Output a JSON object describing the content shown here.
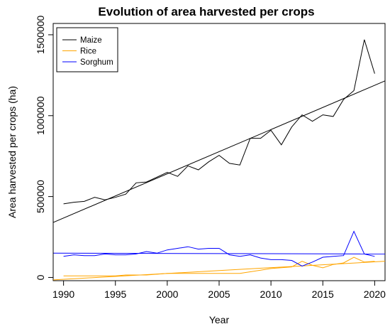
{
  "chart_data": {
    "type": "line",
    "title": "Evolution of area harvested per crops",
    "xlabel": "Year",
    "ylabel": "Area harvested per crops (ha)",
    "xlim": [
      1989,
      2021
    ],
    "ylim": [
      -20000,
      1570000
    ],
    "x_ticks": [
      1990,
      1995,
      2000,
      2005,
      2010,
      2015,
      2020
    ],
    "y_ticks": [
      0,
      500000,
      1000000,
      1500000
    ],
    "grid": false,
    "legend_position": "top-left",
    "x": [
      1990,
      1991,
      1992,
      1993,
      1994,
      1995,
      1996,
      1997,
      1998,
      1999,
      2000,
      2001,
      2002,
      2003,
      2004,
      2005,
      2006,
      2007,
      2008,
      2009,
      2010,
      2011,
      2012,
      2013,
      2014,
      2015,
      2016,
      2017,
      2018,
      2019,
      2020
    ],
    "series": [
      {
        "name": "Maize",
        "color": "#000000",
        "values": [
          455000,
          465000,
          470000,
          495000,
          480000,
          495000,
          515000,
          585000,
          590000,
          620000,
          650000,
          625000,
          690000,
          665000,
          715000,
          755000,
          705000,
          695000,
          860000,
          860000,
          910000,
          820000,
          930000,
          1005000,
          965000,
          1005000,
          995000,
          1100000,
          1155000,
          1470000,
          1260000
        ],
        "trend": [
          340000,
          1215000
        ]
      },
      {
        "name": "Rice",
        "color": "#FFA500",
        "values": [
          10000,
          10000,
          10000,
          10000,
          10000,
          10000,
          15000,
          15000,
          15000,
          20000,
          25000,
          25000,
          25000,
          25000,
          25000,
          25000,
          25000,
          25000,
          35000,
          45000,
          55000,
          60000,
          65000,
          100000,
          75000,
          60000,
          80000,
          90000,
          125000,
          95000,
          100000
        ],
        "trend": [
          -15000,
          100000
        ]
      },
      {
        "name": "Sorghum",
        "color": "#0000FF",
        "values": [
          130000,
          140000,
          135000,
          135000,
          145000,
          140000,
          140000,
          145000,
          160000,
          150000,
          170000,
          180000,
          190000,
          175000,
          180000,
          180000,
          140000,
          130000,
          140000,
          120000,
          110000,
          110000,
          105000,
          70000,
          95000,
          125000,
          130000,
          135000,
          285000,
          145000,
          130000
        ],
        "trend": [
          150000,
          145000
        ]
      }
    ]
  }
}
